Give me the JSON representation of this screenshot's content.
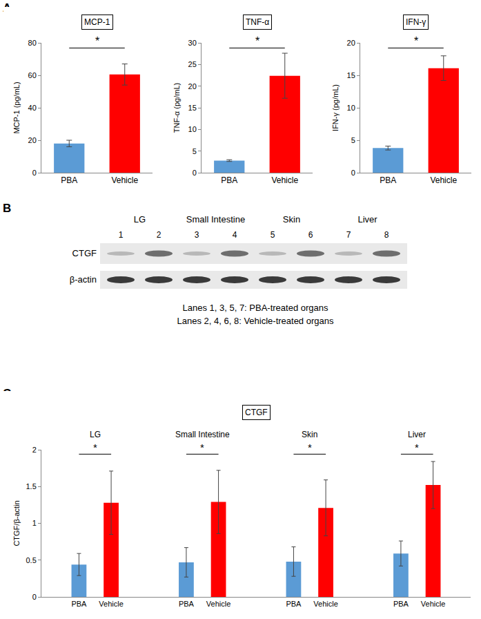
{
  "panel_labels": [
    "A",
    "B",
    "C"
  ],
  "chart_data": [
    {
      "type": "bar",
      "title": "MCP-1",
      "ylabel": "MCP-1 (pg/mL)",
      "categories": [
        "PBA",
        "Vehicle"
      ],
      "values": [
        18,
        60.5
      ],
      "errors": [
        2,
        6.5
      ],
      "colors": [
        "#5b9bd5",
        "#ff0000"
      ],
      "ylim": [
        0,
        80
      ],
      "yticks": [
        0,
        20,
        40,
        60,
        80
      ],
      "annotation": "*"
    },
    {
      "type": "bar",
      "title": "TNF-α",
      "ylabel": "TNF-α (pg/mL)",
      "categories": [
        "PBA",
        "Vehicle"
      ],
      "values": [
        2.8,
        22.4
      ],
      "errors": [
        0.2,
        5.2
      ],
      "colors": [
        "#5b9bd5",
        "#ff0000"
      ],
      "ylim": [
        0,
        30
      ],
      "yticks": [
        0,
        5,
        10,
        15,
        20,
        25,
        30
      ],
      "annotation": "*"
    },
    {
      "type": "bar",
      "title": "IFN-γ",
      "ylabel": "IFN-γ (pg/mL)",
      "categories": [
        "PBA",
        "Vehicle"
      ],
      "values": [
        3.8,
        16.1
      ],
      "errors": [
        0.3,
        1.9
      ],
      "colors": [
        "#5b9bd5",
        "#ff0000"
      ],
      "ylim": [
        0,
        20
      ],
      "yticks": [
        0,
        5,
        10,
        15,
        20
      ],
      "annotation": "*"
    },
    {
      "type": "bar",
      "title": "CTGF",
      "ylabel": "CTGF/β-actin",
      "categories": [
        "LG",
        "Small Intestine",
        "Skin",
        "Liver"
      ],
      "series": [
        {
          "name": "PBA",
          "color": "#5b9bd5",
          "values": [
            0.44,
            0.47,
            0.48,
            0.59
          ],
          "errors": [
            0.15,
            0.2,
            0.2,
            0.17
          ]
        },
        {
          "name": "Vehicle",
          "color": "#ff0000",
          "values": [
            1.28,
            1.29,
            1.21,
            1.52
          ],
          "errors": [
            0.43,
            0.43,
            0.38,
            0.32
          ]
        }
      ],
      "ylim": [
        0,
        2
      ],
      "yticks": [
        0,
        0.5,
        1,
        1.5,
        2
      ],
      "annotation": "*"
    }
  ],
  "blot": {
    "groups": [
      "LG",
      "Small Intestine",
      "Skin",
      "Liver"
    ],
    "lanes": [
      "1",
      "2",
      "3",
      "4",
      "5",
      "6",
      "7",
      "8"
    ],
    "rows": [
      "CTGF",
      "β-actin"
    ],
    "notes": [
      "Lanes 1, 3, 5, 7: PBA-treated organs",
      "Lanes 2, 4, 6, 8: Vehicle-treated organs"
    ]
  }
}
